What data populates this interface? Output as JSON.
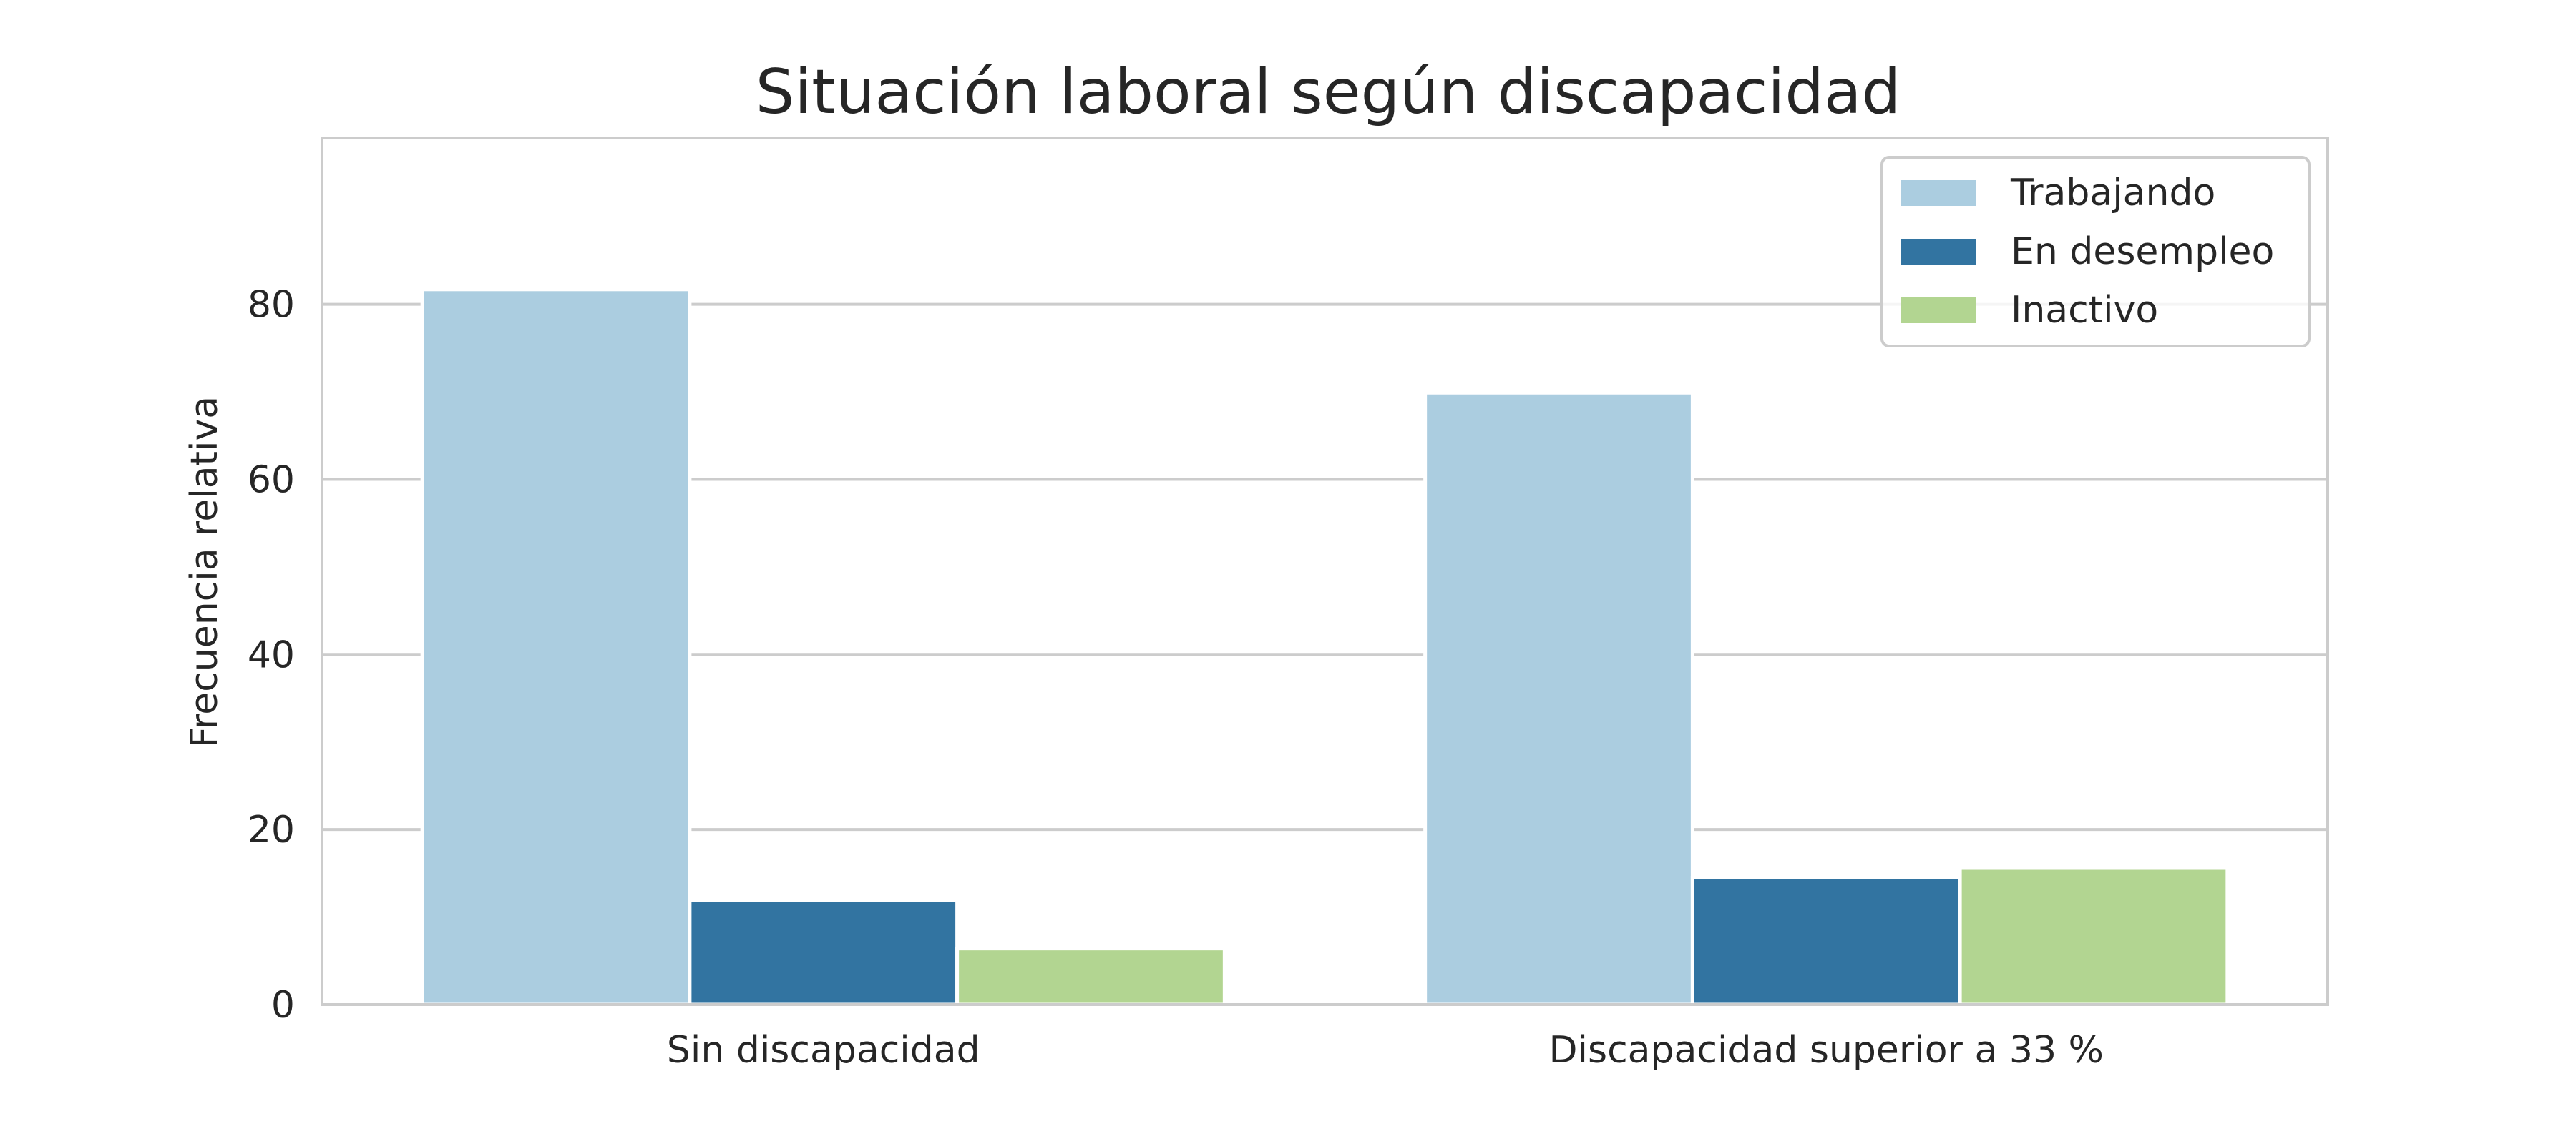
{
  "chart_data": {
    "type": "bar",
    "title": "Situación laboral según discapacidad",
    "xlabel": "",
    "ylabel": "Frecuencia relativa",
    "categories": [
      "Sin discapacidad",
      "Discapacidad superior a 33 %"
    ],
    "series": [
      {
        "name": "Trabajando",
        "values": [
          81.7,
          69.9
        ],
        "color": "#abcde0"
      },
      {
        "name": "En desempleo",
        "values": [
          11.9,
          14.5
        ],
        "color": "#3274a1"
      },
      {
        "name": "Inactivo",
        "values": [
          6.4,
          15.6
        ],
        "color": "#b2d591"
      }
    ],
    "ylim": [
      0,
      99
    ],
    "yticks": [
      0,
      20,
      40,
      60,
      80
    ],
    "grid": true,
    "legend_position": "top-right"
  }
}
